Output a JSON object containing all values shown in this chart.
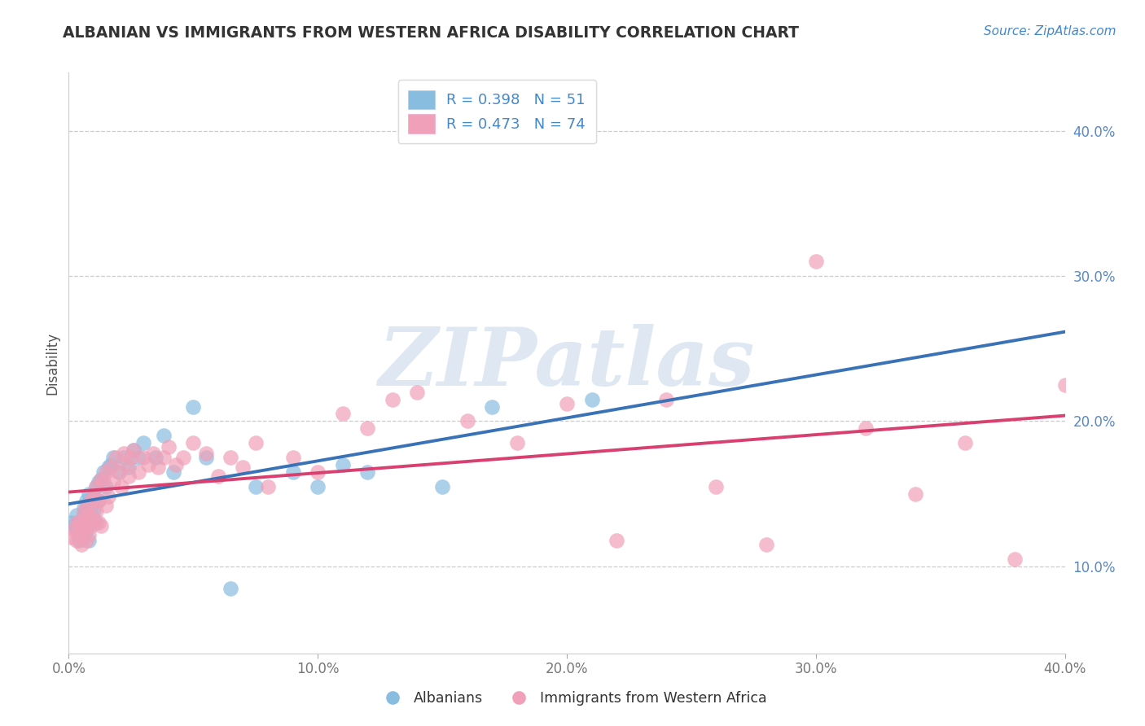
{
  "title": "ALBANIAN VS IMMIGRANTS FROM WESTERN AFRICA DISABILITY CORRELATION CHART",
  "source_text": "Source: ZipAtlas.com",
  "ylabel": "Disability",
  "xlim": [
    0.0,
    0.4
  ],
  "ylim": [
    0.04,
    0.44
  ],
  "x_ticks": [
    0.0,
    0.1,
    0.2,
    0.3,
    0.4
  ],
  "x_tick_labels": [
    "0.0%",
    "10.0%",
    "20.0%",
    "30.0%",
    "40.0%"
  ],
  "y_ticks": [
    0.1,
    0.2,
    0.3,
    0.4
  ],
  "y_tick_labels": [
    "10.0%",
    "20.0%",
    "30.0%",
    "40.0%"
  ],
  "legend_label_blue": "R = 0.398   N = 51",
  "legend_label_pink": "R = 0.473   N = 74",
  "watermark": "ZIPatlas",
  "blue_scatter_color": "#89bde0",
  "pink_scatter_color": "#f0a0b8",
  "blue_line_color": "#3a72b8",
  "pink_line_color": "#d84070",
  "albanians_x": [
    0.001,
    0.002,
    0.003,
    0.003,
    0.004,
    0.004,
    0.005,
    0.005,
    0.006,
    0.006,
    0.006,
    0.007,
    0.007,
    0.007,
    0.008,
    0.008,
    0.008,
    0.009,
    0.009,
    0.01,
    0.01,
    0.011,
    0.011,
    0.012,
    0.012,
    0.013,
    0.014,
    0.015,
    0.016,
    0.017,
    0.018,
    0.02,
    0.022,
    0.024,
    0.026,
    0.028,
    0.03,
    0.035,
    0.038,
    0.042,
    0.05,
    0.055,
    0.065,
    0.075,
    0.09,
    0.1,
    0.11,
    0.12,
    0.15,
    0.17,
    0.21
  ],
  "albanians_y": [
    0.13,
    0.128,
    0.125,
    0.135,
    0.122,
    0.118,
    0.132,
    0.12,
    0.14,
    0.135,
    0.128,
    0.138,
    0.145,
    0.125,
    0.13,
    0.15,
    0.118,
    0.135,
    0.142,
    0.148,
    0.138,
    0.155,
    0.13,
    0.145,
    0.158,
    0.16,
    0.165,
    0.155,
    0.168,
    0.17,
    0.175,
    0.165,
    0.175,
    0.168,
    0.18,
    0.175,
    0.185,
    0.175,
    0.19,
    0.165,
    0.21,
    0.175,
    0.085,
    0.155,
    0.165,
    0.155,
    0.17,
    0.165,
    0.155,
    0.21,
    0.215
  ],
  "wa_x": [
    0.001,
    0.002,
    0.003,
    0.003,
    0.004,
    0.004,
    0.005,
    0.005,
    0.006,
    0.006,
    0.007,
    0.007,
    0.007,
    0.008,
    0.008,
    0.009,
    0.009,
    0.01,
    0.01,
    0.011,
    0.011,
    0.012,
    0.012,
    0.013,
    0.013,
    0.014,
    0.015,
    0.015,
    0.016,
    0.017,
    0.018,
    0.019,
    0.02,
    0.021,
    0.022,
    0.023,
    0.024,
    0.025,
    0.026,
    0.028,
    0.03,
    0.032,
    0.034,
    0.036,
    0.038,
    0.04,
    0.043,
    0.046,
    0.05,
    0.055,
    0.06,
    0.065,
    0.07,
    0.075,
    0.08,
    0.09,
    0.1,
    0.11,
    0.12,
    0.13,
    0.14,
    0.16,
    0.18,
    0.2,
    0.22,
    0.24,
    0.26,
    0.28,
    0.3,
    0.32,
    0.34,
    0.36,
    0.38,
    0.4
  ],
  "wa_y": [
    0.12,
    0.125,
    0.118,
    0.13,
    0.122,
    0.128,
    0.132,
    0.115,
    0.125,
    0.138,
    0.13,
    0.14,
    0.118,
    0.135,
    0.122,
    0.145,
    0.128,
    0.132,
    0.148,
    0.138,
    0.155,
    0.13,
    0.145,
    0.16,
    0.128,
    0.158,
    0.142,
    0.165,
    0.148,
    0.168,
    0.158,
    0.175,
    0.165,
    0.155,
    0.178,
    0.17,
    0.162,
    0.175,
    0.18,
    0.165,
    0.175,
    0.17,
    0.178,
    0.168,
    0.175,
    0.182,
    0.17,
    0.175,
    0.185,
    0.178,
    0.162,
    0.175,
    0.168,
    0.185,
    0.155,
    0.175,
    0.165,
    0.205,
    0.195,
    0.215,
    0.22,
    0.2,
    0.185,
    0.212,
    0.118,
    0.215,
    0.155,
    0.115,
    0.31,
    0.195,
    0.15,
    0.185,
    0.105,
    0.225
  ]
}
